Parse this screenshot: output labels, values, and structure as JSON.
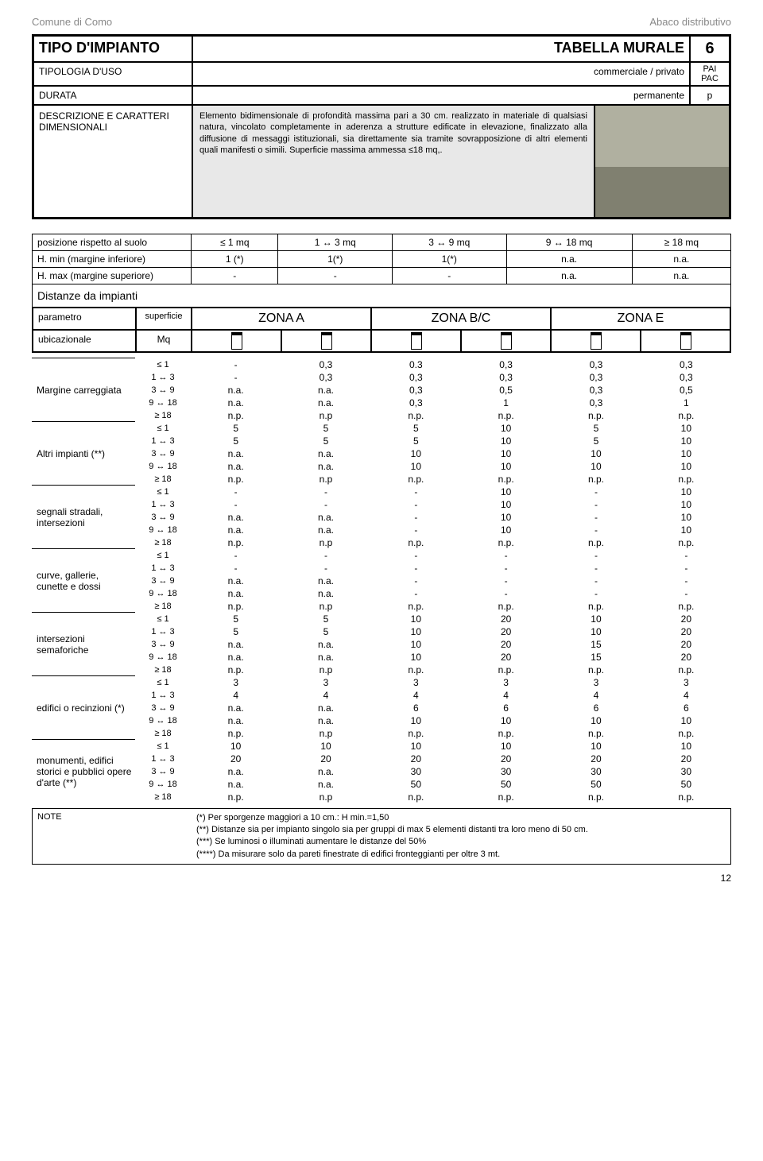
{
  "header": {
    "left": "Comune di Como",
    "right": "Abaco distributivo"
  },
  "mainbox": {
    "tipo_label": "TIPO D'IMPIANTO",
    "tipo_value": "TABELLA MURALE",
    "tipo_num": "6",
    "tipologia_label": "TIPOLOGIA D'USO",
    "tipologia_value": "commerciale / privato",
    "tipologia_codes": "PAI\nPAC",
    "durata_label": "DURATA",
    "durata_value": "permanente",
    "durata_code": "p",
    "desc_label": "DESCRIZIONE E CARATTERI DIMENSIONALI",
    "desc_text": "Elemento bidimensionale di profondità massima pari a 30 cm. realizzato in materiale di qualsiasi natura, vincolato completamente in aderenza a strutture edificate in elevazione, finalizzato alla diffusione di messaggi istituzionali, sia direttamente sia tramite sovrapposizione di altri elementi quali manifesti o simili. Superficie massima ammessa ≤18 mq,."
  },
  "pos_table": {
    "r1_label": "posizione rispetto al suolo",
    "r1": [
      "≤ 1 mq",
      "1 ↔ 3 mq",
      "3 ↔ 9 mq",
      "9 ↔ 18 mq",
      "≥ 18 mq"
    ],
    "r2_label": "H. min (margine inferiore)",
    "r2": [
      "1 (*)",
      "1(*)",
      "1(*)",
      "n.a.",
      "n.a."
    ],
    "r3_label": "H. max (margine superiore)",
    "r3": [
      "-",
      "-",
      "-",
      "n.a.",
      "n.a."
    ]
  },
  "dist_label": "Distanze da impianti",
  "param": {
    "p1": "parametro",
    "p2": "ubicazionale",
    "s1": "superficie",
    "s2": "Mq",
    "za": "ZONA A",
    "zb": "ZONA B/C",
    "ze": "ZONA E"
  },
  "sizes": [
    "≤ 1",
    "1 ↔ 3",
    "3 ↔ 9",
    "9 ↔ 18",
    "≥ 18"
  ],
  "groups": [
    {
      "label": "Margine carreggiata",
      "rows": [
        [
          "-",
          "0,3",
          "0.3",
          "0,3",
          "0,3",
          "0,3"
        ],
        [
          "-",
          "0,3",
          "0,3",
          "0,3",
          "0,3",
          "0,3"
        ],
        [
          "n.a.",
          "n.a.",
          "0,3",
          "0,5",
          "0,3",
          "0,5"
        ],
        [
          "n.a.",
          "n.a.",
          "0,3",
          "1",
          "0,3",
          "1"
        ],
        [
          "n.p.",
          "n.p",
          "n.p.",
          "n.p.",
          "n.p.",
          "n.p."
        ]
      ]
    },
    {
      "label": "Altri impianti (**)",
      "rows": [
        [
          "5",
          "5",
          "5",
          "10",
          "5",
          "10"
        ],
        [
          "5",
          "5",
          "5",
          "10",
          "5",
          "10"
        ],
        [
          "n.a.",
          "n.a.",
          "10",
          "10",
          "10",
          "10"
        ],
        [
          "n.a.",
          "n.a.",
          "10",
          "10",
          "10",
          "10"
        ],
        [
          "n.p.",
          "n.p",
          "n.p.",
          "n.p.",
          "n.p.",
          "n.p."
        ]
      ]
    },
    {
      "label": "segnali stradali, intersezioni",
      "rows": [
        [
          "-",
          "-",
          "-",
          "10",
          "-",
          "10"
        ],
        [
          "-",
          "-",
          "-",
          "10",
          "-",
          "10"
        ],
        [
          "n.a.",
          "n.a.",
          "-",
          "10",
          "-",
          "10"
        ],
        [
          "n.a.",
          "n.a.",
          "-",
          "10",
          "-",
          "10"
        ],
        [
          "n.p.",
          "n.p",
          "n.p.",
          "n.p.",
          "n.p.",
          "n.p."
        ]
      ]
    },
    {
      "label": "curve, gallerie, cunette e dossi",
      "rows": [
        [
          "-",
          "-",
          "-",
          "-",
          "-",
          "-"
        ],
        [
          "-",
          "-",
          "-",
          "-",
          "-",
          "-"
        ],
        [
          "n.a.",
          "n.a.",
          "-",
          "-",
          "-",
          "-"
        ],
        [
          "n.a.",
          "n.a.",
          "-",
          "-",
          "-",
          "-"
        ],
        [
          "n.p.",
          "n.p",
          "n.p.",
          "n.p.",
          "n.p.",
          "n.p."
        ]
      ]
    },
    {
      "label": "intersezioni semaforiche",
      "rows": [
        [
          "5",
          "5",
          "10",
          "20",
          "10",
          "20"
        ],
        [
          "5",
          "5",
          "10",
          "20",
          "10",
          "20"
        ],
        [
          "n.a.",
          "n.a.",
          "10",
          "20",
          "15",
          "20"
        ],
        [
          "n.a.",
          "n.a.",
          "10",
          "20",
          "15",
          "20"
        ],
        [
          "n.p.",
          "n.p",
          "n.p.",
          "n.p.",
          "n.p.",
          "n.p."
        ]
      ]
    },
    {
      "label": "edifici o recinzioni (*)",
      "rows": [
        [
          "3",
          "3",
          "3",
          "3",
          "3",
          "3"
        ],
        [
          "4",
          "4",
          "4",
          "4",
          "4",
          "4"
        ],
        [
          "n.a.",
          "n.a.",
          "6",
          "6",
          "6",
          "6"
        ],
        [
          "n.a.",
          "n.a.",
          "10",
          "10",
          "10",
          "10"
        ],
        [
          "n.p.",
          "n.p",
          "n.p.",
          "n.p.",
          "n.p.",
          "n.p."
        ]
      ]
    },
    {
      "label": "monumenti, edifici storici e pubblici opere d'arte (**)",
      "rows": [
        [
          "10",
          "10",
          "10",
          "10",
          "10",
          "10"
        ],
        [
          "20",
          "20",
          "20",
          "20",
          "20",
          "20"
        ],
        [
          "n.a.",
          "n.a.",
          "30",
          "30",
          "30",
          "30"
        ],
        [
          "n.a.",
          "n.a.",
          "50",
          "50",
          "50",
          "50"
        ],
        [
          "n.p.",
          "n.p",
          "n.p.",
          "n.p.",
          "n.p.",
          "n.p."
        ]
      ]
    }
  ],
  "note": {
    "label": "NOTE",
    "lines": [
      "(*) Per sporgenze maggiori a 10 cm.: H min.=1,50",
      "(**) Distanze sia per impianto singolo sia per gruppi di max 5 elementi distanti tra loro meno di 50 cm.",
      "(***) Se luminosi o illuminati aumentare le distanze del 50%",
      "(****) Da misurare solo da pareti finestrate di edifici fronteggianti per oltre 3 mt."
    ]
  },
  "pagenum": "12",
  "colors": {
    "gray_bg": "#e8e8e8",
    "border": "#000000",
    "muted": "#888888"
  }
}
